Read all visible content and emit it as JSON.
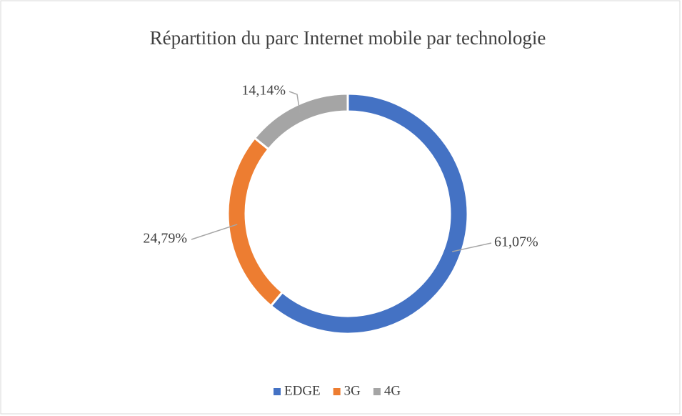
{
  "chart_data": {
    "type": "donut",
    "title": "Répartition du parc Internet mobile par technologie",
    "categories": [
      "EDGE",
      "3G",
      "4G"
    ],
    "values": [
      61.07,
      24.79,
      14.14
    ],
    "value_labels": [
      "61,07%",
      "24,79%",
      "14,14%"
    ],
    "colors": [
      "#4472c4",
      "#ed7d31",
      "#a5a5a5"
    ],
    "legend": "bottom"
  }
}
